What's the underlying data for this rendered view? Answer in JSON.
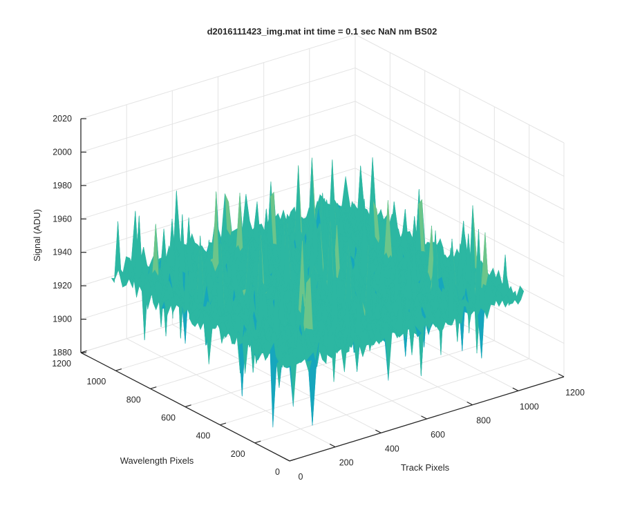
{
  "chart_data": {
    "type": "surface",
    "title": "d2016111423_img.mat int time = 0.1 sec  NaN nm BS02",
    "xlabel": "Track Pixels",
    "ylabel": "Wavelength Pixels",
    "zlabel": "Signal (ADU)",
    "x_ticks": [
      "0",
      "200",
      "400",
      "600",
      "800",
      "1000",
      "1200"
    ],
    "y_ticks": [
      "0",
      "200",
      "400",
      "600",
      "800",
      "1000",
      "1200"
    ],
    "z_ticks": [
      "1880",
      "1900",
      "1920",
      "1940",
      "1960",
      "1980",
      "2000",
      "2020"
    ],
    "xlim": [
      0,
      1200
    ],
    "ylim": [
      0,
      1200
    ],
    "zlim": [
      1880,
      2020
    ],
    "data_extent": {
      "x": [
        0,
        1024
      ],
      "y": [
        0,
        1024
      ]
    },
    "signal_mean": 1937,
    "signal_min": 1884,
    "signal_max": 2017,
    "colormap": [
      "#1f7fc8",
      "#16a6bd",
      "#2cb7a2",
      "#6cc58a",
      "#aacb6e",
      "#dcc85c"
    ],
    "grid": true,
    "view": "3d-oblique"
  }
}
